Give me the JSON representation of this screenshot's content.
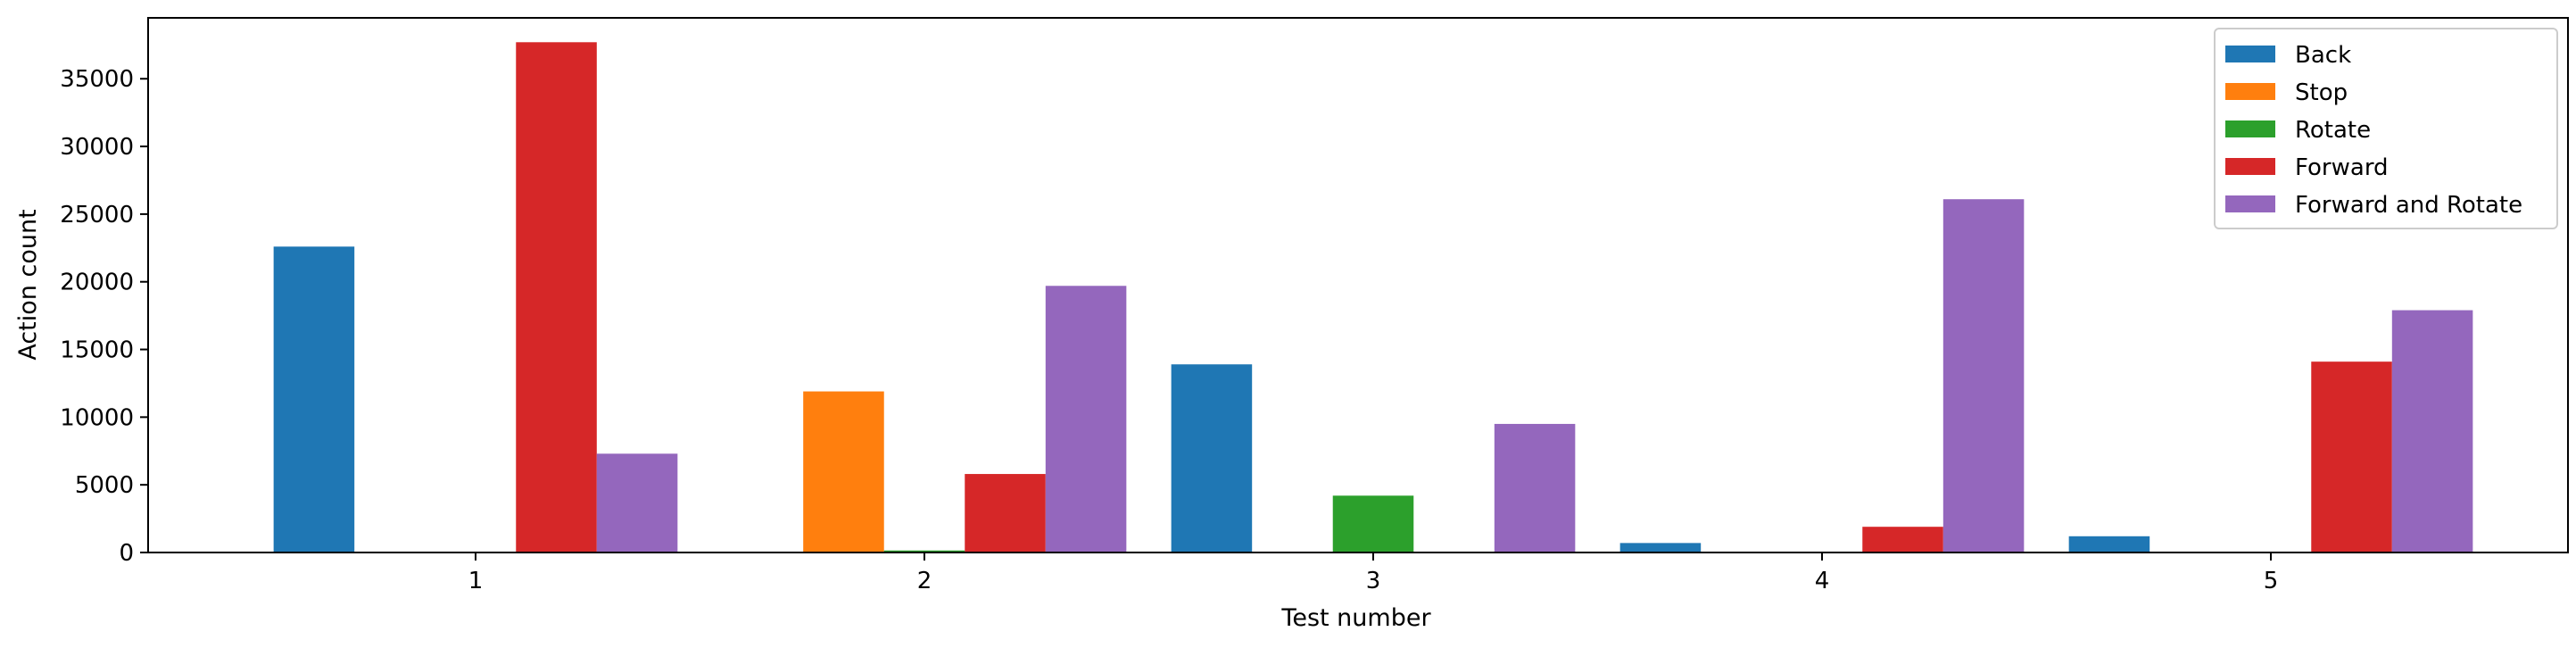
{
  "chart_data": {
    "type": "bar",
    "title": "",
    "xlabel": "Test number",
    "ylabel": "Action count",
    "ylim": [
      0,
      39500
    ],
    "grid": false,
    "legend_position": "top-right",
    "yticks": [
      0,
      5000,
      10000,
      15000,
      20000,
      25000,
      30000,
      35000
    ],
    "categories": [
      "1",
      "2",
      "3",
      "4",
      "5"
    ],
    "series": [
      {
        "name": "Back",
        "color": "#1f77b4",
        "values": [
          22600,
          0,
          13900,
          700,
          1200
        ]
      },
      {
        "name": "Stop",
        "color": "#ff7f0e",
        "values": [
          0,
          11900,
          0,
          0,
          0
        ]
      },
      {
        "name": "Rotate",
        "color": "#2ca02c",
        "values": [
          0,
          150,
          4200,
          0,
          0
        ]
      },
      {
        "name": "Forward",
        "color": "#d62728",
        "values": [
          37700,
          5800,
          0,
          1900,
          14100
        ]
      },
      {
        "name": "Forward and Rotate",
        "color": "#9467bd",
        "values": [
          7300,
          19700,
          9500,
          26100,
          17900
        ]
      }
    ]
  }
}
